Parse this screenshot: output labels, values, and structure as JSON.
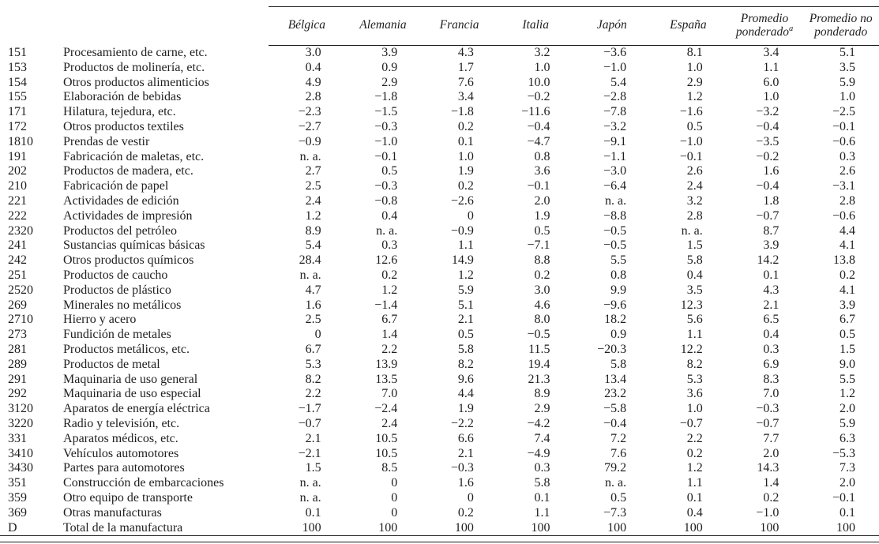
{
  "table": {
    "column_headers": [
      {
        "lines": [
          "Bélgica"
        ],
        "sup": ""
      },
      {
        "lines": [
          "Alemania"
        ],
        "sup": ""
      },
      {
        "lines": [
          "Francia"
        ],
        "sup": ""
      },
      {
        "lines": [
          "Italia"
        ],
        "sup": ""
      },
      {
        "lines": [
          "Japón"
        ],
        "sup": ""
      },
      {
        "lines": [
          "España"
        ],
        "sup": ""
      },
      {
        "lines": [
          "Promedio",
          "ponderado"
        ],
        "sup": "a"
      },
      {
        "lines": [
          "Promedio no",
          "ponderado"
        ],
        "sup": ""
      }
    ],
    "rows": [
      {
        "code": "151",
        "label": "Procesamiento de carne, etc.",
        "values": [
          "3.0",
          "3.9",
          "4.3",
          "3.2",
          "−3.6",
          "8.1",
          "3.4",
          "5.1"
        ]
      },
      {
        "code": "153",
        "label": "Productos de molinería, etc.",
        "values": [
          "0.4",
          "0.9",
          "1.7",
          "1.0",
          "−1.0",
          "1.0",
          "1.1",
          "3.5"
        ]
      },
      {
        "code": "154",
        "label": "Otros productos alimenticios",
        "values": [
          "4.9",
          "2.9",
          "7.6",
          "10.0",
          "5.4",
          "2.9",
          "6.0",
          "5.9"
        ]
      },
      {
        "code": "155",
        "label": "Elaboración de bebidas",
        "values": [
          "2.8",
          "−1.8",
          "3.4",
          "−0.2",
          "−2.8",
          "1.2",
          "1.0",
          "1.0"
        ]
      },
      {
        "code": "171",
        "label": "Hilatura, tejedura, etc.",
        "values": [
          "−2.3",
          "−1.5",
          "−1.8",
          "−11.6",
          "−7.8",
          "−1.6",
          "−3.2",
          "−2.5"
        ]
      },
      {
        "code": "172",
        "label": "Otros productos textiles",
        "values": [
          "−2.7",
          "−0.3",
          "0.2",
          "−0.4",
          "−3.2",
          "0.5",
          "−0.4",
          "−0.1"
        ]
      },
      {
        "code": "1810",
        "label": "Prendas de vestir",
        "values": [
          "−0.9",
          "−1.0",
          "0.1",
          "−4.7",
          "−9.1",
          "−1.0",
          "−3.5",
          "−0.6"
        ]
      },
      {
        "code": "191",
        "label": "Fabricación de maletas, etc.",
        "values": [
          "n. a.",
          "−0.1",
          "1.0",
          "0.8",
          "−1.1",
          "−0.1",
          "−0.2",
          "0.3"
        ]
      },
      {
        "code": "202",
        "label": "Productos de madera, etc.",
        "values": [
          "2.7",
          "0.5",
          "1.9",
          "3.6",
          "−3.0",
          "2.6",
          "1.6",
          "2.6"
        ]
      },
      {
        "code": "210",
        "label": "Fabricación de papel",
        "values": [
          "2.5",
          "−0.3",
          "0.2",
          "−0.1",
          "−6.4",
          "2.4",
          "−0.4",
          "−3.1"
        ]
      },
      {
        "code": "221",
        "label": "Actividades de edición",
        "values": [
          "2.4",
          "−0.8",
          "−2.6",
          "2.0",
          "n. a.",
          "3.2",
          "1.8",
          "2.8"
        ]
      },
      {
        "code": "222",
        "label": "Actividades de impresión",
        "values": [
          "1.2",
          "0.4",
          "0",
          "1.9",
          "−8.8",
          "2.8",
          "−0.7",
          "−0.6"
        ]
      },
      {
        "code": "2320",
        "label": "Productos del petróleo",
        "values": [
          "8.9",
          "n. a.",
          "−0.9",
          "0.5",
          "−0.5",
          "n. a.",
          "8.7",
          "4.4"
        ]
      },
      {
        "code": "241",
        "label": "Sustancias químicas básicas",
        "values": [
          "5.4",
          "0.3",
          "1.1",
          "−7.1",
          "−0.5",
          "1.5",
          "3.9",
          "4.1"
        ]
      },
      {
        "code": "242",
        "label": "Otros productos químicos",
        "values": [
          "28.4",
          "12.6",
          "14.9",
          "8.8",
          "5.5",
          "5.8",
          "14.2",
          "13.8"
        ]
      },
      {
        "code": "251",
        "label": "Productos de caucho",
        "values": [
          "n. a.",
          "0.2",
          "1.2",
          "0.2",
          "0.8",
          "0.4",
          "0.1",
          "0.2"
        ]
      },
      {
        "code": "2520",
        "label": "Productos de plástico",
        "values": [
          "4.7",
          "1.2",
          "5.9",
          "3.0",
          "9.9",
          "3.5",
          "4.3",
          "4.1"
        ]
      },
      {
        "code": "269",
        "label": "Minerales no metálicos",
        "values": [
          "1.6",
          "−1.4",
          "5.1",
          "4.6",
          "−9.6",
          "12.3",
          "2.1",
          "3.9"
        ]
      },
      {
        "code": "2710",
        "label": "Hierro y acero",
        "values": [
          "2.5",
          "6.7",
          "2.1",
          "8.0",
          "18.2",
          "5.6",
          "6.5",
          "6.7"
        ]
      },
      {
        "code": "273",
        "label": "Fundición de metales",
        "values": [
          "0",
          "1.4",
          "0.5",
          "−0.5",
          "0.9",
          "1.1",
          "0.4",
          "0.5"
        ]
      },
      {
        "code": "281",
        "label": "Productos metálicos, etc.",
        "values": [
          "6.7",
          "2.2",
          "5.8",
          "11.5",
          "−20.3",
          "12.2",
          "0.3",
          "1.5"
        ]
      },
      {
        "code": "289",
        "label": "Productos de metal",
        "values": [
          "5.3",
          "13.9",
          "8.2",
          "19.4",
          "5.8",
          "8.2",
          "6.9",
          "9.0"
        ]
      },
      {
        "code": "291",
        "label": "Maquinaria de uso general",
        "values": [
          "8.2",
          "13.5",
          "9.6",
          "21.3",
          "13.4",
          "5.3",
          "8.3",
          "5.5"
        ]
      },
      {
        "code": "292",
        "label": "Maquinaria de uso especial",
        "values": [
          "2.2",
          "7.0",
          "4.4",
          "8.9",
          "23.2",
          "3.6",
          "7.0",
          "1.2"
        ]
      },
      {
        "code": "3120",
        "label": "Aparatos de energía eléctrica",
        "values": [
          "−1.7",
          "−2.4",
          "1.9",
          "2.9",
          "−5.8",
          "1.0",
          "−0.3",
          "2.0"
        ]
      },
      {
        "code": "3220",
        "label": "Radio y televisión, etc.",
        "values": [
          "−0.7",
          "2.4",
          "−2.2",
          "−4.2",
          "−0.4",
          "−0.7",
          "−0.7",
          "5.9"
        ]
      },
      {
        "code": "331",
        "label": "Aparatos médicos, etc.",
        "values": [
          "2.1",
          "10.5",
          "6.6",
          "7.4",
          "7.2",
          "2.2",
          "7.7",
          "6.3"
        ]
      },
      {
        "code": "3410",
        "label": "Vehículos automotores",
        "values": [
          "−2.1",
          "10.5",
          "2.1",
          "−4.9",
          "7.6",
          "0.2",
          "2.0",
          "−5.3"
        ]
      },
      {
        "code": "3430",
        "label": "Partes para automotores",
        "values": [
          "1.5",
          "8.5",
          "−0.3",
          "0.3",
          "79.2",
          "1.2",
          "14.3",
          "7.3"
        ]
      },
      {
        "code": "351",
        "label": "Construcción de embarcaciones",
        "values": [
          "n. a.",
          "0",
          "1.6",
          "5.8",
          "n. a.",
          "1.1",
          "1.4",
          "2.0"
        ]
      },
      {
        "code": "359",
        "label": "Otro equipo de transporte",
        "values": [
          "n. a.",
          "0",
          "0",
          "0.1",
          "0.5",
          "0.1",
          "0.2",
          "−0.1"
        ]
      },
      {
        "code": "369",
        "label": "Otras manufacturas",
        "values": [
          "0.1",
          "0",
          "0.2",
          "1.1",
          "−7.3",
          "0.4",
          "−1.0",
          "0.1"
        ]
      },
      {
        "code": "D",
        "label": "Total de la manufactura",
        "values": [
          "100",
          "100",
          "100",
          "100",
          "100",
          "100",
          "100",
          "100"
        ]
      }
    ]
  }
}
